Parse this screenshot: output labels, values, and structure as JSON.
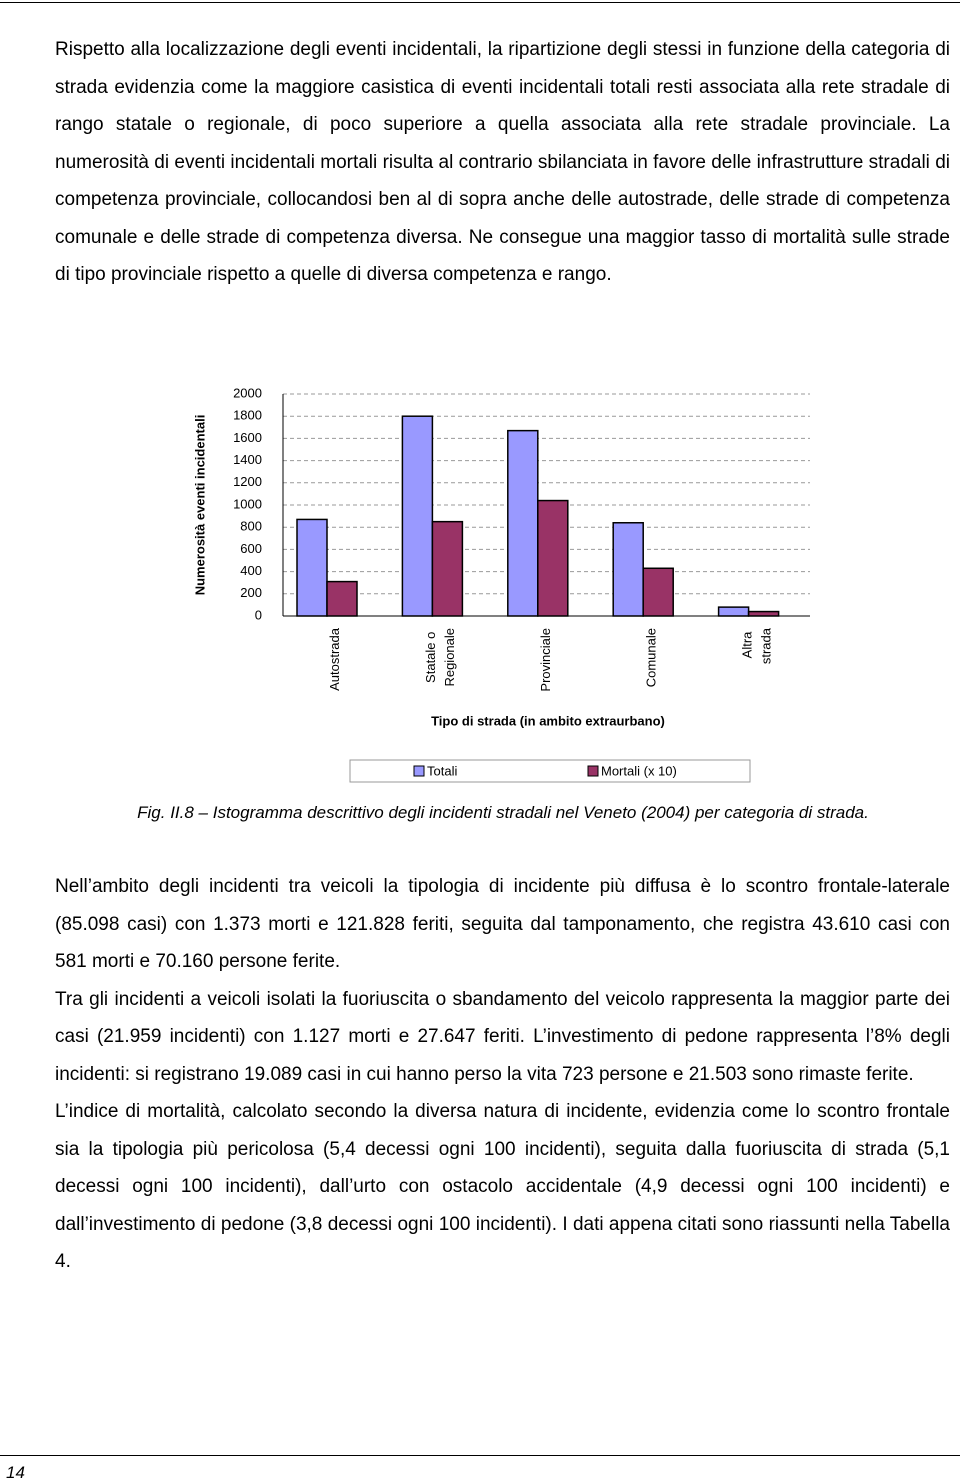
{
  "paragraphs_top": [
    "Rispetto alla localizzazione degli eventi incidentali, la ripartizione degli stessi in funzione della categoria di strada evidenzia come la maggiore casistica di eventi incidentali totali resti associata alla rete stradale di rango statale o regionale, di poco superiore a quella associata alla rete stradale provinciale. La numerosità di eventi incidentali mortali risulta al contrario sbilanciata in favore delle infrastrutture stradali di competenza provinciale, collocandosi ben al di sopra anche delle autostrade, delle strade di competenza comunale e delle strade di competenza diversa. Ne consegue una maggior tasso di mortalità sulle strade di tipo provinciale rispetto a quelle di diversa competenza e rango."
  ],
  "chart_data": {
    "type": "bar",
    "x_label": "Tipo di strada (in ambito extraurbano)",
    "y_label": "Numerosità eventi incidentali",
    "categories": [
      "Autostrada",
      "Statale o Regionale",
      "Provinciale",
      "Comunale",
      "Altra strada"
    ],
    "series": [
      {
        "name": "Totali",
        "color": "#9999ff",
        "values": [
          870,
          1800,
          1670,
          840,
          80
        ]
      },
      {
        "name": "Mortali (x 10)",
        "color": "#993366",
        "values": [
          310,
          850,
          1040,
          430,
          40
        ]
      }
    ],
    "ylim": [
      0,
      2000
    ],
    "yticks": [
      0,
      200,
      400,
      600,
      800,
      1000,
      1200,
      1400,
      1600,
      1800,
      2000
    ],
    "grid": true,
    "legend": "bottom"
  },
  "caption": "Fig. II.8 – Istogramma descrittivo degli incidenti stradali nel Veneto (2004) per categoria di strada.",
  "paragraphs_bottom": [
    "Nell’ambito degli incidenti tra veicoli la tipologia di incidente più diffusa è lo scontro frontale-laterale (85.098 casi) con 1.373 morti e 121.828 feriti, seguita dal tamponamento, che registra 43.610 casi con 581 morti e 70.160 persone ferite.",
    "Tra gli incidenti a veicoli isolati la fuoriuscita o sbandamento del veicolo rappresenta la maggior parte dei casi (21.959 incidenti) con 1.127 morti e 27.647 feriti. L’investimento di pedone rappresenta l’8% degli incidenti: si registrano 19.089 casi in cui hanno perso la vita 723 persone e 21.503 sono rimaste ferite.",
    "L’indice di mortalità, calcolato secondo la diversa natura di incidente, evidenzia come lo scontro frontale sia la tipologia più pericolosa (5,4 decessi ogni 100 incidenti), seguita dalla fuoriuscita di strada (5,1 decessi ogni 100 incidenti), dall’urto con ostacolo accidentale (4,9 decessi ogni 100 incidenti) e dall’investimento di pedone (3,8 decessi ogni 100 incidenti). I dati appena citati sono riassunti nella Tabella 4."
  ],
  "page_number": "14"
}
